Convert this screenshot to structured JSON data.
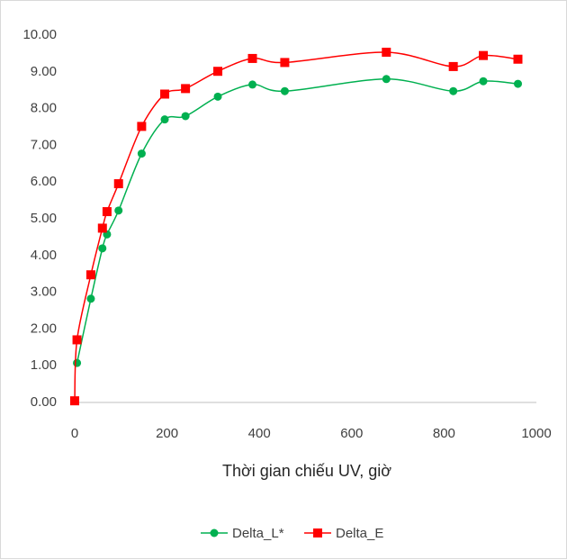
{
  "chart_data": {
    "type": "line",
    "title": "",
    "xlabel": "Thời gian chiếu UV, giờ",
    "ylabel": "",
    "xlim": [
      0,
      1000
    ],
    "ylim": [
      0,
      10
    ],
    "x_ticks": [
      0,
      200,
      400,
      600,
      800,
      1000
    ],
    "y_ticks": [
      0,
      1,
      2,
      3,
      4,
      5,
      6,
      7,
      8,
      9,
      10
    ],
    "x_tick_labels": [
      "0",
      "200",
      "400",
      "600",
      "800",
      "1000"
    ],
    "y_tick_labels": [
      "0.00",
      "1.00",
      "2.00",
      "3.00",
      "4.00",
      "5.00",
      "6.00",
      "7.00",
      "8.00",
      "9.00",
      "10.00"
    ],
    "grid": false,
    "legend_position": "bottom",
    "series": [
      {
        "name": "Delta_L*",
        "color": "#00b050",
        "marker": "circle",
        "x": [
          5,
          35,
          60,
          70,
          95,
          145,
          195,
          240,
          310,
          385,
          455,
          675,
          820,
          885,
          960
        ],
        "y": [
          1.05,
          2.8,
          4.17,
          4.55,
          5.2,
          6.75,
          7.68,
          7.77,
          8.3,
          8.63,
          8.45,
          8.78,
          8.45,
          8.72,
          8.65
        ]
      },
      {
        "name": "Delta_E",
        "color": "#ff0000",
        "marker": "square",
        "x": [
          0,
          5,
          35,
          60,
          70,
          95,
          145,
          195,
          240,
          310,
          385,
          455,
          675,
          820,
          885,
          960
        ],
        "y": [
          0.02,
          1.68,
          3.45,
          4.72,
          5.17,
          5.93,
          7.49,
          8.37,
          8.52,
          8.99,
          9.34,
          9.23,
          9.51,
          9.12,
          9.42,
          9.32
        ]
      }
    ]
  }
}
